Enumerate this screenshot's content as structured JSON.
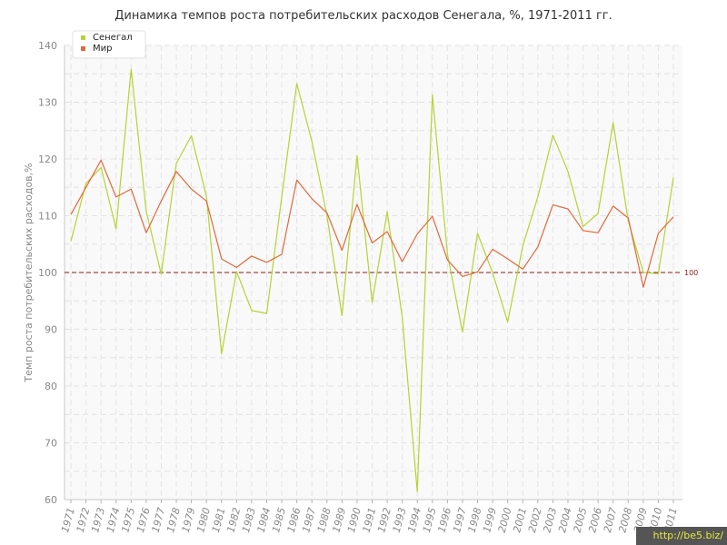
{
  "chart_data": {
    "type": "line",
    "title": "Динамика темпов роста потребительских расходов Сенегала, %, 1971-2011 гг.",
    "ylabel": "Темп роста потребительских расходов,%",
    "xlabel": "",
    "ylim": [
      60,
      140
    ],
    "yticks": [
      60,
      70,
      80,
      90,
      100,
      110,
      120,
      130,
      140
    ],
    "grid": true,
    "legend_position": "top-left",
    "reference_line": {
      "value": 100,
      "label": "100",
      "color": "#8b1a1a"
    },
    "x": [
      1971,
      1972,
      1973,
      1974,
      1975,
      1976,
      1977,
      1978,
      1979,
      1980,
      1981,
      1982,
      1983,
      1984,
      1985,
      1986,
      1987,
      1988,
      1989,
      1990,
      1991,
      1992,
      1993,
      1994,
      1995,
      1996,
      1997,
      1998,
      1999,
      2000,
      2001,
      2002,
      2003,
      2004,
      2005,
      2006,
      2007,
      2008,
      2009,
      2010,
      2011
    ],
    "series": [
      {
        "name": "Сенегал",
        "color": "#b5d334",
        "values": [
          105.5,
          115.7,
          118.5,
          107.7,
          135.8,
          110.8,
          99.7,
          119.2,
          124.1,
          113.4,
          85.7,
          100.2,
          93.3,
          92.8,
          113.3,
          133.3,
          123.1,
          110.0,
          92.4,
          120.6,
          94.7,
          110.7,
          92.2,
          61.4,
          131.3,
          103.2,
          89.5,
          106.9,
          99.9,
          91.3,
          104.7,
          113.3,
          124.2,
          117.8,
          108.1,
          110.4,
          126.4,
          109.1,
          100.0,
          99.8,
          116.7
        ]
      },
      {
        "name": "Мир",
        "color": "#e2683c",
        "values": [
          110.2,
          115.0,
          119.8,
          113.3,
          114.7,
          107.0,
          112.6,
          117.8,
          114.7,
          112.6,
          102.4,
          100.9,
          102.9,
          101.8,
          103.2,
          116.3,
          113.0,
          110.5,
          103.9,
          112.0,
          105.2,
          107.2,
          101.9,
          106.8,
          109.9,
          102.2,
          99.3,
          100.1,
          104.1,
          102.4,
          100.6,
          104.5,
          111.9,
          111.2,
          107.4,
          107.0,
          111.7,
          109.6,
          97.4,
          106.9,
          109.8
        ]
      }
    ]
  },
  "watermark": "http://be5.biz/"
}
